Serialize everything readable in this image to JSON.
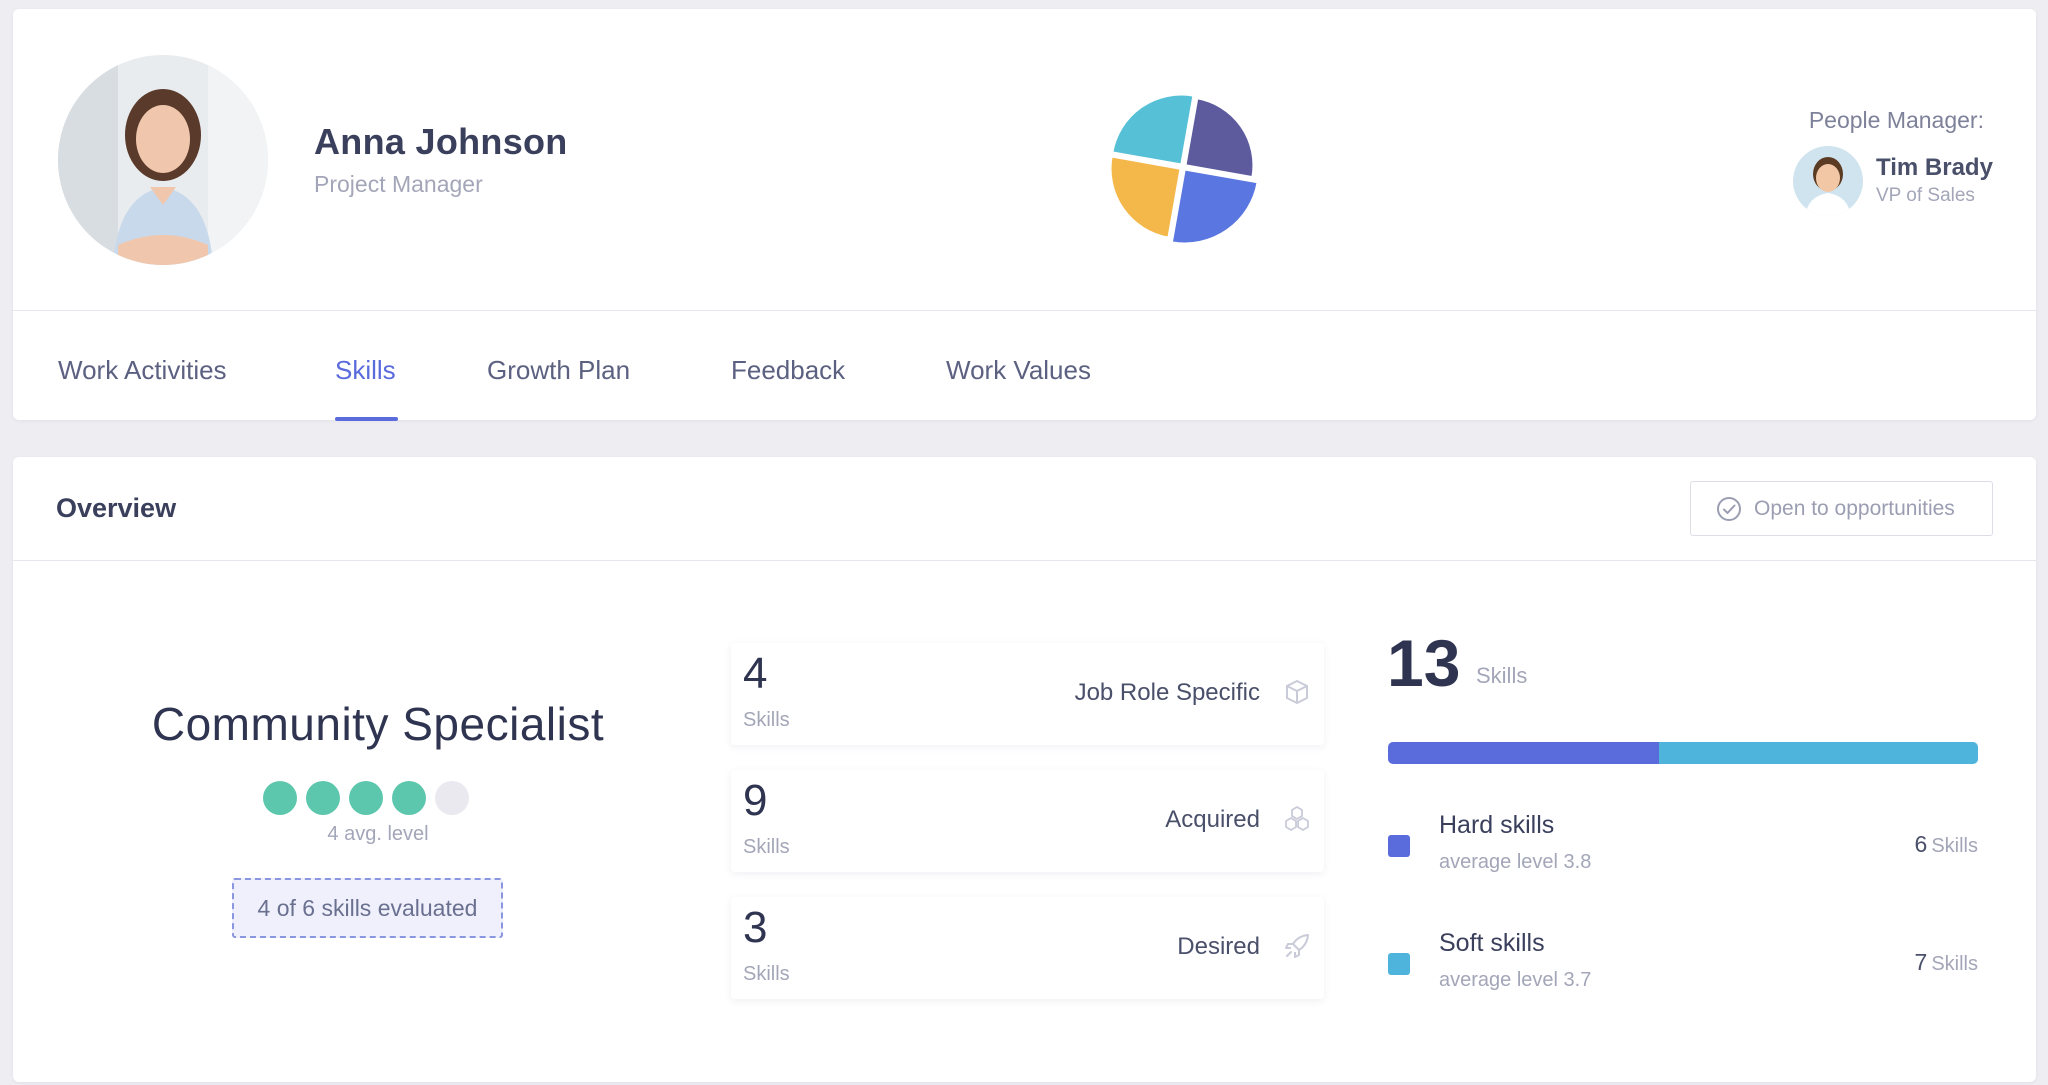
{
  "profile": {
    "name": "Anna Johnson",
    "role": "Project Manager"
  },
  "manager": {
    "caption": "People Manager:",
    "name": "Tim Brady",
    "title": "VP of Sales"
  },
  "chart_data": {
    "type": "pie",
    "categories": [
      "",
      "",
      "",
      ""
    ],
    "values": [
      25,
      25,
      25,
      25
    ],
    "colors": [
      "#5d5b9e",
      "#5a76e0",
      "#f4b84a",
      "#56c0d6"
    ]
  },
  "tabs": [
    {
      "label": "Work Activities",
      "active": false
    },
    {
      "label": "Skills",
      "active": true
    },
    {
      "label": "Growth Plan",
      "active": false
    },
    {
      "label": "Feedback",
      "active": false
    },
    {
      "label": "Work Values",
      "active": false
    }
  ],
  "overview": {
    "title": "Overview",
    "open_button_label": "Open to opportunities"
  },
  "specialist": {
    "title": "Community Specialist",
    "level": 4,
    "max_level": 5,
    "avg_level_text": "4 avg. level",
    "evaluated_text": "4 of 6 skills evaluated"
  },
  "stats": [
    {
      "value": "4",
      "unit": "Skills",
      "label": "Job Role Specific",
      "icon": "cube-icon"
    },
    {
      "value": "9",
      "unit": "Skills",
      "label": "Acquired",
      "icon": "cubes-icon"
    },
    {
      "value": "3",
      "unit": "Skills",
      "label": "Desired",
      "icon": "rocket-icon"
    }
  ],
  "totals": {
    "value": "13",
    "unit": "Skills",
    "hard_fraction": 0.46
  },
  "skill_types": [
    {
      "name": "Hard skills",
      "avg": "average level 3.8",
      "count": "6",
      "unit": "Skills",
      "color": "#5a6bdc"
    },
    {
      "name": "Soft skills",
      "avg": "average level 3.7",
      "count": "7",
      "unit": "Skills",
      "color": "#4fb4dc"
    }
  ],
  "colors": {
    "accent": "#5a6bdc",
    "teal_dot": "#5cc7ad",
    "empty_dot": "#e9e9ef"
  }
}
